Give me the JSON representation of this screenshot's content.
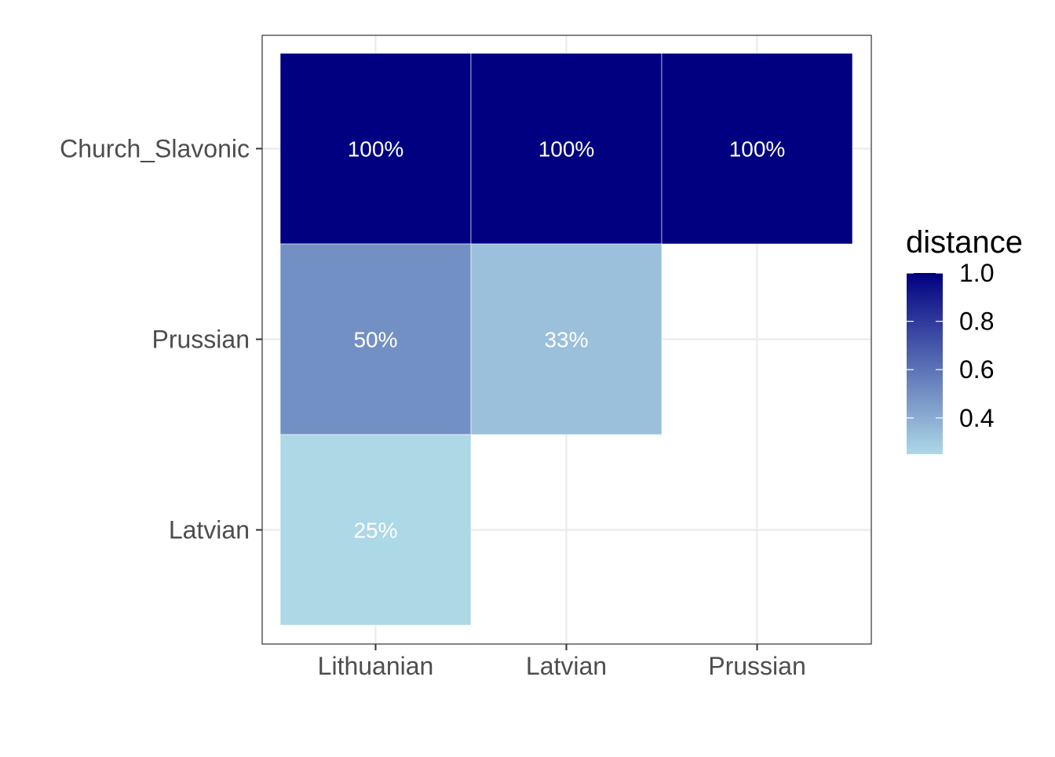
{
  "chart_data": {
    "type": "heatmap",
    "title": "",
    "xlabel": "",
    "ylabel": "",
    "x_categories": [
      "Lithuanian",
      "Latvian",
      "Prussian"
    ],
    "y_categories": [
      "Church_Slavonic",
      "Prussian",
      "Latvian"
    ],
    "cells": [
      {
        "x": "Lithuanian",
        "y": "Church_Slavonic",
        "value": 1.0,
        "label": "100%"
      },
      {
        "x": "Latvian",
        "y": "Church_Slavonic",
        "value": 1.0,
        "label": "100%"
      },
      {
        "x": "Prussian",
        "y": "Church_Slavonic",
        "value": 1.0,
        "label": "100%"
      },
      {
        "x": "Lithuanian",
        "y": "Prussian",
        "value": 0.5,
        "label": "50%"
      },
      {
        "x": "Latvian",
        "y": "Prussian",
        "value": 0.333,
        "label": "33%"
      },
      {
        "x": "Lithuanian",
        "y": "Latvian",
        "value": 0.25,
        "label": "25%"
      }
    ],
    "legend": {
      "title": "distance",
      "position": "right",
      "ticks": [
        1.0,
        0.8,
        0.6,
        0.4
      ],
      "tick_labels": [
        "1.0",
        "0.8",
        "0.6",
        "0.4"
      ],
      "range": [
        0.25,
        1.0
      ],
      "low_color": "#add8e6",
      "high_color": "#000080"
    },
    "cell_label_color": "#ffffff",
    "grid": true
  }
}
